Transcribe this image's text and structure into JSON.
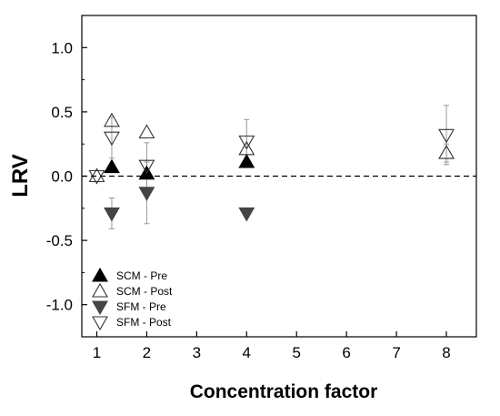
{
  "chart_data": {
    "type": "scatter",
    "xlabel": "Concentration factor",
    "ylabel": "LRV",
    "xlim": [
      0.7,
      8.6
    ],
    "ylim": [
      -1.25,
      1.25
    ],
    "xticks": [
      1,
      2,
      3,
      4,
      5,
      6,
      7,
      8
    ],
    "yticks": [
      1.0,
      0.5,
      0.0,
      -0.5,
      -1.0
    ],
    "ytick_labels": [
      "1.0",
      "0.5",
      "0.0",
      "-0.5",
      "-1.0"
    ],
    "reference_line": {
      "y": 0.0,
      "style": "dashed"
    },
    "legend_position": "bottom-left",
    "series": [
      {
        "name": "SCM - Pre",
        "marker": "triangle-up",
        "fill": "#000000",
        "points": [
          {
            "x": 1.3,
            "y": 0.07,
            "yerr": null
          },
          {
            "x": 2.0,
            "y": 0.02,
            "yerr": null
          },
          {
            "x": 4.0,
            "y": 0.11,
            "yerr": null
          }
        ]
      },
      {
        "name": "SCM - Post",
        "marker": "triangle-up",
        "fill": "none",
        "points": [
          {
            "x": 1.0,
            "y": 0.0,
            "yerr": null
          },
          {
            "x": 1.3,
            "y": 0.43,
            "yerr": null
          },
          {
            "x": 2.0,
            "y": 0.34,
            "yerr": null
          },
          {
            "x": 4.0,
            "y": 0.21,
            "yerr": null
          },
          {
            "x": 8.0,
            "y": 0.18,
            "yerr": 0.07
          }
        ]
      },
      {
        "name": "SFM - Pre",
        "marker": "triangle-down",
        "fill": "#444444",
        "points": [
          {
            "x": 1.3,
            "y": -0.29,
            "yerr": 0.12
          },
          {
            "x": 2.0,
            "y": -0.13,
            "yerr": 0.24
          },
          {
            "x": 4.0,
            "y": -0.29,
            "yerr": null
          }
        ]
      },
      {
        "name": "SFM - Post",
        "marker": "triangle-down",
        "fill": "none",
        "points": [
          {
            "x": 1.0,
            "y": 0.0,
            "yerr": null
          },
          {
            "x": 1.3,
            "y": 0.3,
            "yerr": 0.16
          },
          {
            "x": 2.0,
            "y": 0.08,
            "yerr": 0.18
          },
          {
            "x": 4.0,
            "y": 0.27,
            "yerr": 0.17
          },
          {
            "x": 8.0,
            "y": 0.32,
            "yerr": 0.23
          }
        ]
      }
    ]
  }
}
